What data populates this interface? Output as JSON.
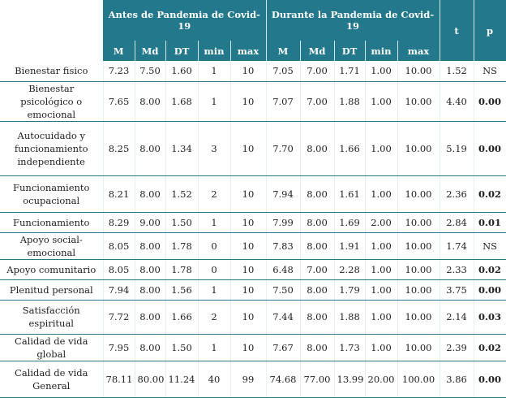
{
  "header": {
    "groups": [
      "Antes de Pandemia de Covid-19",
      "Durante la Pandemia de Covid-19"
    ],
    "columns": [
      "M",
      "Md",
      "DT",
      "min",
      "max",
      "M",
      "Md",
      "DT",
      "min",
      "max"
    ],
    "t": "t",
    "p": "p"
  },
  "rows": [
    {
      "label": "Bienestar fisico",
      "values": [
        "7.23",
        "7.50",
        "1.60",
        "1",
        "10",
        "7.05",
        "7.00",
        "1.71",
        "1.00",
        "10.00",
        "1.52",
        "NS"
      ]
    },
    {
      "label": "Bienestar psicológico o emocional",
      "values": [
        "7.65",
        "8.00",
        "1.68",
        "1",
        "10",
        "7.07",
        "7.00",
        "1.88",
        "1.00",
        "10.00",
        "4.40",
        "0.00"
      ]
    },
    {
      "label": "Autocuidado y funcionamiento independiente",
      "values": [
        "8.25",
        "8.00",
        "1.34",
        "3",
        "10",
        "7.70",
        "8.00",
        "1.66",
        "1.00",
        "10.00",
        "5.19",
        "0.00"
      ]
    },
    {
      "label": "Funcionamiento ocupacional",
      "values": [
        "8.21",
        "8.00",
        "1.52",
        "2",
        "10",
        "7.94",
        "8.00",
        "1.61",
        "1.00",
        "10.00",
        "2.36",
        "0.02"
      ]
    },
    {
      "label": "Funcionamiento",
      "values": [
        "8.29",
        "9.00",
        "1.50",
        "1",
        "10",
        "7.99",
        "8.00",
        "1.69",
        "2.00",
        "10.00",
        "2.84",
        "0.01"
      ]
    },
    {
      "label": "Apoyo social-emocional",
      "values": [
        "8.05",
        "8.00",
        "1.78",
        "0",
        "10",
        "7.83",
        "8.00",
        "1.91",
        "1.00",
        "10.00",
        "1.74",
        "NS"
      ]
    },
    {
      "label": "Apoyo comunitario",
      "values": [
        "8.05",
        "8.00",
        "1.78",
        "0",
        "10",
        "6.48",
        "7.00",
        "2.28",
        "1.00",
        "10.00",
        "2.33",
        "0.02"
      ]
    },
    {
      "label": "Plenitud personal",
      "values": [
        "7.94",
        "8.00",
        "1.56",
        "1",
        "10",
        "7.50",
        "8.00",
        "1.79",
        "1.00",
        "10.00",
        "3.75",
        "0.00"
      ]
    },
    {
      "label": "Satisfacción espiritual",
      "values": [
        "7.72",
        "8.00",
        "1.66",
        "2",
        "10",
        "7.44",
        "8.00",
        "1.88",
        "1.00",
        "10.00",
        "2.14",
        "0.03"
      ]
    },
    {
      "label": "Calidad de vida global",
      "values": [
        "7.95",
        "8.00",
        "1.50",
        "1",
        "10",
        "7.67",
        "8.00",
        "1.73",
        "1.00",
        "10.00",
        "2.39",
        "0.02"
      ]
    },
    {
      "label": "Calidad de vida General",
      "values": [
        "78.11",
        "80.00",
        "11.24",
        "40",
        "99",
        "74.68",
        "77.00",
        "13.99",
        "20.00",
        "100.00",
        "3.86",
        "0.00"
      ]
    }
  ]
}
